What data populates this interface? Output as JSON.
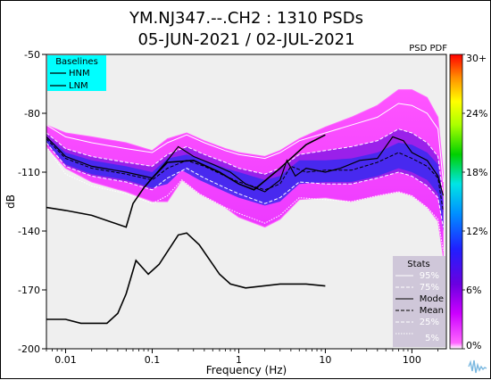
{
  "chart_data": {
    "type": "heatmap",
    "title_line1": "YM.NJ347.--.CH2 : 1310 PSDs",
    "title_line2": "05-JUN-2021 / 02-JUL-2021",
    "pdf_label": "PSD PDF",
    "xlabel": "Frequency (Hz)",
    "ylabel": "dB",
    "xscale": "log",
    "xlim": [
      0.006,
      250
    ],
    "ylim": [
      -200,
      -50
    ],
    "x_ticks": [
      {
        "v": 0.01,
        "label": "0.01"
      },
      {
        "v": 0.1,
        "label": "0.1"
      },
      {
        "v": 1,
        "label": "1"
      },
      {
        "v": 10,
        "label": "10"
      },
      {
        "v": 100,
        "label": "100"
      }
    ],
    "y_ticks": [
      {
        "v": -50,
        "label": "-50"
      },
      {
        "v": -80,
        "label": "-80"
      },
      {
        "v": -110,
        "label": "-110"
      },
      {
        "v": -140,
        "label": "-140"
      },
      {
        "v": -170,
        "label": "-170"
      },
      {
        "v": -200,
        "label": "-200"
      }
    ],
    "colorbar": {
      "labels": [
        "0%",
        "6%",
        "12%",
        "18%",
        "24%",
        "30+"
      ],
      "colors": [
        "#ffffff",
        "#ff33ff",
        "#7a00e6",
        "#2d2dff",
        "#00e5ff",
        "#00e000",
        "#ffff00",
        "#ff8000",
        "#ff0000"
      ]
    },
    "baselines_legend": {
      "title": "Baselines",
      "entries": [
        "HNM",
        "LNM"
      ],
      "bg_color": "#00ffff"
    },
    "stats_legend": {
      "title": "Stats",
      "entries": [
        "95%",
        "75%",
        "Mode",
        "Mean",
        "25%",
        "5%"
      ],
      "bg_color": "#cfc7d9"
    },
    "nhnm": [
      [
        0.006,
        -128
      ],
      [
        0.01,
        -129.5
      ],
      [
        0.02,
        -132
      ],
      [
        0.05,
        -138
      ],
      [
        0.06,
        -126
      ],
      [
        0.08,
        -118
      ],
      [
        0.1,
        -113
      ],
      [
        0.15,
        -105
      ],
      [
        0.3,
        -104
      ],
      [
        0.6,
        -110
      ],
      [
        1.0,
        -116
      ],
      [
        1.5,
        -119
      ],
      [
        3,
        -108
      ],
      [
        6,
        -96
      ],
      [
        10,
        -91
      ]
    ],
    "nlnm": [
      [
        0.006,
        -185
      ],
      [
        0.01,
        -185
      ],
      [
        0.015,
        -187
      ],
      [
        0.03,
        -187
      ],
      [
        0.04,
        -182
      ],
      [
        0.05,
        -172
      ],
      [
        0.065,
        -155
      ],
      [
        0.09,
        -162
      ],
      [
        0.12,
        -157
      ],
      [
        0.2,
        -142
      ],
      [
        0.25,
        -141
      ],
      [
        0.35,
        -147
      ],
      [
        0.6,
        -162
      ],
      [
        0.8,
        -167
      ],
      [
        1.2,
        -169
      ],
      [
        3,
        -167
      ],
      [
        6,
        -167
      ],
      [
        10,
        -168
      ]
    ],
    "pdf_band": {
      "upper": [
        [
          0.006,
          -86
        ],
        [
          0.01,
          -90
        ],
        [
          0.02,
          -92
        ],
        [
          0.05,
          -95
        ],
        [
          0.1,
          -99
        ],
        [
          0.15,
          -93
        ],
        [
          0.25,
          -90
        ],
        [
          0.4,
          -94
        ],
        [
          0.7,
          -98
        ],
        [
          1.0,
          -100
        ],
        [
          2,
          -102
        ],
        [
          3,
          -99
        ],
        [
          5,
          -93
        ],
        [
          10,
          -87
        ],
        [
          20,
          -82
        ],
        [
          40,
          -76
        ],
        [
          70,
          -68
        ],
        [
          100,
          -68
        ],
        [
          150,
          -72
        ],
        [
          200,
          -82
        ],
        [
          230,
          -110
        ]
      ],
      "lower": [
        [
          0.006,
          -97
        ],
        [
          0.01,
          -108
        ],
        [
          0.02,
          -115
        ],
        [
          0.05,
          -120
        ],
        [
          0.1,
          -125
        ],
        [
          0.15,
          -125
        ],
        [
          0.22,
          -114
        ],
        [
          0.35,
          -121
        ],
        [
          0.7,
          -128
        ],
        [
          1.0,
          -133
        ],
        [
          2,
          -138
        ],
        [
          3,
          -134
        ],
        [
          5,
          -124
        ],
        [
          10,
          -123
        ],
        [
          20,
          -125
        ],
        [
          40,
          -122
        ],
        [
          70,
          -120
        ],
        [
          100,
          -122
        ],
        [
          150,
          -128
        ],
        [
          200,
          -135
        ],
        [
          230,
          -153
        ]
      ]
    },
    "pdf_core": {
      "upper": [
        [
          0.006,
          -92
        ],
        [
          0.01,
          -100
        ],
        [
          0.02,
          -104
        ],
        [
          0.05,
          -107
        ],
        [
          0.1,
          -110
        ],
        [
          0.15,
          -103
        ],
        [
          0.25,
          -101
        ],
        [
          0.4,
          -104
        ],
        [
          0.7,
          -108
        ],
        [
          1.0,
          -110
        ],
        [
          2,
          -114
        ],
        [
          3,
          -112
        ],
        [
          5,
          -104
        ],
        [
          10,
          -104
        ],
        [
          20,
          -103
        ],
        [
          40,
          -100
        ],
        [
          70,
          -95
        ],
        [
          100,
          -96
        ],
        [
          150,
          -100
        ],
        [
          200,
          -106
        ],
        [
          230,
          -125
        ]
      ],
      "lower": [
        [
          0.006,
          -95
        ],
        [
          0.01,
          -106
        ],
        [
          0.02,
          -111
        ],
        [
          0.05,
          -114
        ],
        [
          0.1,
          -118
        ],
        [
          0.15,
          -116
        ],
        [
          0.22,
          -109
        ],
        [
          0.35,
          -114
        ],
        [
          0.7,
          -120
        ],
        [
          1.0,
          -123
        ],
        [
          2,
          -127
        ],
        [
          3,
          -125
        ],
        [
          5,
          -116
        ],
        [
          10,
          -115
        ],
        [
          20,
          -115
        ],
        [
          40,
          -112
        ],
        [
          70,
          -108
        ],
        [
          100,
          -110
        ],
        [
          150,
          -114
        ],
        [
          200,
          -121
        ],
        [
          230,
          -140
        ]
      ]
    },
    "mode": [
      [
        0.006,
        -92
      ],
      [
        0.01,
        -102
      ],
      [
        0.02,
        -107
      ],
      [
        0.05,
        -110
      ],
      [
        0.1,
        -113
      ],
      [
        0.15,
        -104
      ],
      [
        0.2,
        -97
      ],
      [
        0.3,
        -102
      ],
      [
        0.5,
        -106
      ],
      [
        0.8,
        -110
      ],
      [
        1.2,
        -116
      ],
      [
        2,
        -120
      ],
      [
        3,
        -114
      ],
      [
        3.6,
        -104
      ],
      [
        4.5,
        -112
      ],
      [
        6,
        -108
      ],
      [
        10,
        -110
      ],
      [
        15,
        -108
      ],
      [
        25,
        -104
      ],
      [
        40,
        -103
      ],
      [
        60,
        -92
      ],
      [
        80,
        -94
      ],
      [
        100,
        -100
      ],
      [
        150,
        -104
      ],
      [
        200,
        -112
      ],
      [
        230,
        -122
      ]
    ],
    "mean": [
      [
        0.006,
        -93
      ],
      [
        0.01,
        -103
      ],
      [
        0.02,
        -108
      ],
      [
        0.05,
        -111
      ],
      [
        0.1,
        -114
      ],
      [
        0.15,
        -108
      ],
      [
        0.25,
        -104
      ],
      [
        0.4,
        -107
      ],
      [
        0.7,
        -112
      ],
      [
        1.0,
        -115
      ],
      [
        2,
        -119
      ],
      [
        3,
        -116
      ],
      [
        4,
        -107
      ],
      [
        6,
        -110
      ],
      [
        10,
        -109
      ],
      [
        20,
        -109
      ],
      [
        40,
        -105
      ],
      [
        70,
        -100
      ],
      [
        100,
        -103
      ],
      [
        150,
        -107
      ],
      [
        200,
        -113
      ],
      [
        230,
        -130
      ]
    ],
    "p95": [
      [
        0.006,
        -86
      ],
      [
        0.01,
        -92
      ],
      [
        0.02,
        -95
      ],
      [
        0.05,
        -98
      ],
      [
        0.1,
        -100
      ],
      [
        0.15,
        -95
      ],
      [
        0.25,
        -91
      ],
      [
        0.4,
        -95
      ],
      [
        0.7,
        -99
      ],
      [
        1.0,
        -101
      ],
      [
        2,
        -103
      ],
      [
        3,
        -100
      ],
      [
        5,
        -94
      ],
      [
        10,
        -90
      ],
      [
        20,
        -86
      ],
      [
        40,
        -82
      ],
      [
        70,
        -75
      ],
      [
        100,
        -76
      ],
      [
        150,
        -80
      ],
      [
        200,
        -88
      ],
      [
        230,
        -115
      ]
    ],
    "p75": [
      [
        0.006,
        -90
      ],
      [
        0.01,
        -98
      ],
      [
        0.02,
        -102
      ],
      [
        0.05,
        -105
      ],
      [
        0.1,
        -107
      ],
      [
        0.15,
        -101
      ],
      [
        0.25,
        -97
      ],
      [
        0.4,
        -101
      ],
      [
        0.7,
        -105
      ],
      [
        1.0,
        -108
      ],
      [
        2,
        -111
      ],
      [
        3,
        -108
      ],
      [
        5,
        -101
      ],
      [
        10,
        -99
      ],
      [
        20,
        -97
      ],
      [
        40,
        -94
      ],
      [
        70,
        -88
      ],
      [
        100,
        -90
      ],
      [
        150,
        -95
      ],
      [
        200,
        -102
      ],
      [
        230,
        -123
      ]
    ],
    "p25": [
      [
        0.006,
        -95
      ],
      [
        0.01,
        -107
      ],
      [
        0.02,
        -112
      ],
      [
        0.05,
        -115
      ],
      [
        0.1,
        -119
      ],
      [
        0.15,
        -113
      ],
      [
        0.25,
        -108
      ],
      [
        0.4,
        -113
      ],
      [
        0.7,
        -118
      ],
      [
        1.0,
        -121
      ],
      [
        2,
        -126
      ],
      [
        3,
        -123
      ],
      [
        5,
        -115
      ],
      [
        10,
        -116
      ],
      [
        20,
        -116
      ],
      [
        40,
        -113
      ],
      [
        70,
        -110
      ],
      [
        100,
        -112
      ],
      [
        150,
        -117
      ],
      [
        200,
        -123
      ],
      [
        230,
        -138
      ]
    ],
    "p5": [
      [
        0.006,
        -97
      ],
      [
        0.01,
        -111
      ],
      [
        0.02,
        -117
      ],
      [
        0.05,
        -121
      ],
      [
        0.1,
        -126
      ],
      [
        0.15,
        -122
      ],
      [
        0.22,
        -114
      ],
      [
        0.35,
        -121
      ],
      [
        0.7,
        -128
      ],
      [
        1.0,
        -131
      ],
      [
        2,
        -136
      ],
      [
        3,
        -132
      ],
      [
        5,
        -123
      ],
      [
        10,
        -124
      ],
      [
        20,
        -125
      ],
      [
        40,
        -122
      ],
      [
        70,
        -120
      ],
      [
        100,
        -122
      ],
      [
        150,
        -128
      ],
      [
        200,
        -134
      ],
      [
        230,
        -150
      ]
    ]
  }
}
